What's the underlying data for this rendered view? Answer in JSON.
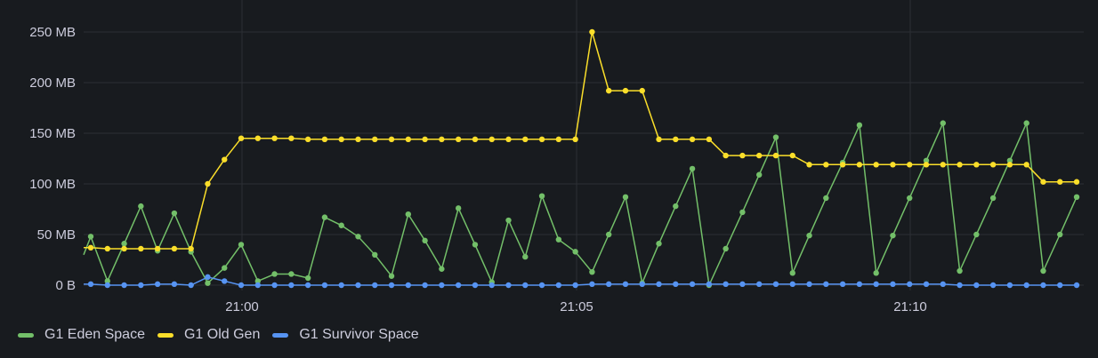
{
  "chart_data": {
    "type": "line",
    "title": "",
    "xlabel": "",
    "ylabel": "",
    "ylim": [
      0,
      250
    ],
    "y_unit": "MB",
    "yticks": [
      "0 B",
      "50 MB",
      "100 MB",
      "150 MB",
      "200 MB",
      "250 MB"
    ],
    "xticks": [
      "21:00",
      "21:05",
      "21:10"
    ],
    "grid": true,
    "legend_position": "bottom-left",
    "series": [
      {
        "name": "G1 Eden Space",
        "color": "#73bf69",
        "values": [
          48,
          4,
          41,
          78,
          34,
          71,
          33,
          2,
          17,
          40,
          4,
          11,
          11,
          7,
          67,
          59,
          48,
          30,
          9,
          70,
          44,
          16,
          76,
          40,
          3,
          64,
          28,
          88,
          45,
          33,
          13,
          50,
          87,
          2,
          41,
          78,
          115,
          0,
          36,
          72,
          109,
          146,
          12,
          49,
          86,
          121,
          158,
          12,
          49,
          86,
          123,
          160,
          14,
          50,
          86,
          123,
          160,
          14,
          50,
          87
        ]
      },
      {
        "name": "G1 Old Gen",
        "color": "#fade2a",
        "values": [
          37,
          36,
          36,
          36,
          36,
          36,
          36,
          100,
          124,
          145,
          145,
          145,
          145,
          144,
          144,
          144,
          144,
          144,
          144,
          144,
          144,
          144,
          144,
          144,
          144,
          144,
          144,
          144,
          144,
          144,
          250,
          192,
          192,
          192,
          144,
          144,
          144,
          144,
          128,
          128,
          128,
          128,
          128,
          119,
          119,
          119,
          119,
          119,
          119,
          119,
          119,
          119,
          119,
          119,
          119,
          119,
          119,
          102,
          102,
          102
        ]
      },
      {
        "name": "G1 Survivor Space",
        "color": "#5794f2",
        "values": [
          1,
          0,
          0,
          0,
          1,
          1,
          0,
          8,
          4,
          0,
          0,
          0,
          0,
          0,
          0,
          0,
          0,
          0,
          0,
          0,
          0,
          0,
          0,
          0,
          0,
          0,
          0,
          0,
          0,
          0,
          1,
          1,
          1,
          1,
          1,
          1,
          1,
          1,
          1,
          1,
          1,
          1,
          1,
          1,
          1,
          1,
          1,
          1,
          1,
          1,
          1,
          1,
          0,
          0,
          0,
          0,
          0,
          0,
          0,
          0
        ]
      }
    ]
  },
  "legend": {
    "items": [
      {
        "label": "G1 Eden Space",
        "color": "#73bf69"
      },
      {
        "label": "G1 Old Gen",
        "color": "#fade2a"
      },
      {
        "label": "G1 Survivor Space",
        "color": "#5794f2"
      }
    ]
  },
  "colors": {
    "background": "#181b1f",
    "grid": "#2c2f34",
    "text": "#ccccdc"
  }
}
